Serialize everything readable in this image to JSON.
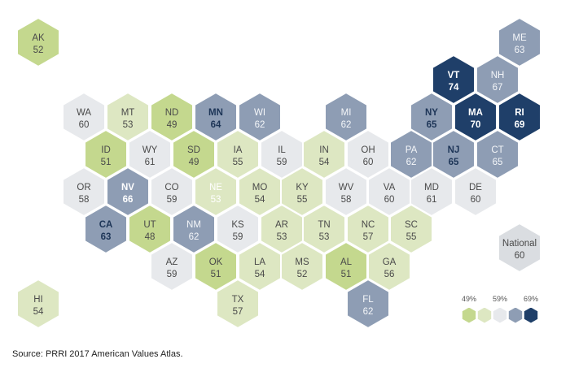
{
  "source": "Source: PRRI 2017 American Values Atlas.",
  "palette": {
    "bin1": "#c4d88e",
    "bin2": "#dde7c2",
    "bin3": "#e7e9ec",
    "bin4": "#8e9db4",
    "bin5": "#1f3f69",
    "label_dark": "#4a4a4a",
    "label_light": "#ffffff"
  },
  "legend": {
    "labels": [
      "49%",
      "59%",
      "69%"
    ]
  },
  "national": {
    "label": "National",
    "value": "60"
  },
  "states": [
    {
      "abbr": "AK",
      "value": "52",
      "bin": 1
    },
    {
      "abbr": "ME",
      "value": "63",
      "bin": 4
    },
    {
      "abbr": "VT",
      "value": "74",
      "bin": 5
    },
    {
      "abbr": "NH",
      "value": "67",
      "bin": 4
    },
    {
      "abbr": "WA",
      "value": "60",
      "bin": 3
    },
    {
      "abbr": "MT",
      "value": "53",
      "bin": 2
    },
    {
      "abbr": "ND",
      "value": "49",
      "bin": 1
    },
    {
      "abbr": "MN",
      "value": "64",
      "bin": 4
    },
    {
      "abbr": "WI",
      "value": "62",
      "bin": 4
    },
    {
      "abbr": "MI",
      "value": "62",
      "bin": 4
    },
    {
      "abbr": "NY",
      "value": "65",
      "bin": 4
    },
    {
      "abbr": "MA",
      "value": "70",
      "bin": 5
    },
    {
      "abbr": "RI",
      "value": "69",
      "bin": 5
    },
    {
      "abbr": "ID",
      "value": "51",
      "bin": 1
    },
    {
      "abbr": "WY",
      "value": "61",
      "bin": 3
    },
    {
      "abbr": "SD",
      "value": "49",
      "bin": 1
    },
    {
      "abbr": "IA",
      "value": "55",
      "bin": 2
    },
    {
      "abbr": "IL",
      "value": "59",
      "bin": 3
    },
    {
      "abbr": "IN",
      "value": "54",
      "bin": 2
    },
    {
      "abbr": "OH",
      "value": "60",
      "bin": 3
    },
    {
      "abbr": "PA",
      "value": "62",
      "bin": 4
    },
    {
      "abbr": "NJ",
      "value": "65",
      "bin": 4
    },
    {
      "abbr": "CT",
      "value": "65",
      "bin": 4
    },
    {
      "abbr": "OR",
      "value": "58",
      "bin": 3
    },
    {
      "abbr": "NV",
      "value": "66",
      "bin": 4
    },
    {
      "abbr": "CO",
      "value": "59",
      "bin": 3
    },
    {
      "abbr": "NE",
      "value": "53",
      "bin": 2
    },
    {
      "abbr": "MO",
      "value": "54",
      "bin": 2
    },
    {
      "abbr": "KY",
      "value": "55",
      "bin": 2
    },
    {
      "abbr": "WV",
      "value": "58",
      "bin": 3
    },
    {
      "abbr": "VA",
      "value": "60",
      "bin": 3
    },
    {
      "abbr": "MD",
      "value": "61",
      "bin": 3
    },
    {
      "abbr": "DE",
      "value": "60",
      "bin": 3
    },
    {
      "abbr": "CA",
      "value": "63",
      "bin": 4
    },
    {
      "abbr": "UT",
      "value": "48",
      "bin": 1
    },
    {
      "abbr": "NM",
      "value": "62",
      "bin": 4
    },
    {
      "abbr": "KS",
      "value": "59",
      "bin": 3
    },
    {
      "abbr": "AR",
      "value": "53",
      "bin": 2
    },
    {
      "abbr": "TN",
      "value": "53",
      "bin": 2
    },
    {
      "abbr": "NC",
      "value": "57",
      "bin": 2
    },
    {
      "abbr": "SC",
      "value": "55",
      "bin": 2
    },
    {
      "abbr": "AZ",
      "value": "59",
      "bin": 3
    },
    {
      "abbr": "OK",
      "value": "51",
      "bin": 1
    },
    {
      "abbr": "LA",
      "value": "54",
      "bin": 2
    },
    {
      "abbr": "MS",
      "value": "52",
      "bin": 2
    },
    {
      "abbr": "AL",
      "value": "51",
      "bin": 1
    },
    {
      "abbr": "GA",
      "value": "56",
      "bin": 2
    },
    {
      "abbr": "HI",
      "value": "54",
      "bin": 2
    },
    {
      "abbr": "TX",
      "value": "57",
      "bin": 2
    },
    {
      "abbr": "FL",
      "value": "62",
      "bin": 4
    }
  ]
}
